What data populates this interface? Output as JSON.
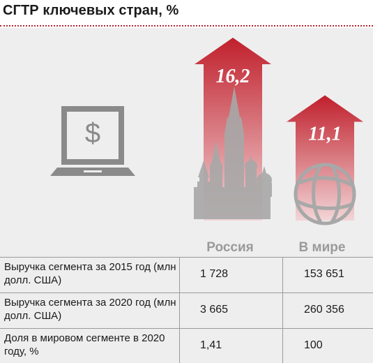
{
  "title": "СГТР ключевых стран, %",
  "colors": {
    "accent": "#b0262f",
    "arrow_top": "#c0202c",
    "arrow_bottom": "#f2d5d7",
    "icon": "#8a8a8a",
    "category_label": "#9a9a9a"
  },
  "icons": [
    "laptop-dollar-icon",
    "kremlin-icon",
    "globe-icon"
  ],
  "chart_data": {
    "type": "bar",
    "title": "СГТР ключевых стран, %",
    "categories": [
      "Россия",
      "В мире"
    ],
    "values": [
      16.2,
      11.1
    ],
    "value_labels": [
      "16,2",
      "11,1"
    ],
    "xlabel": "",
    "ylabel": ""
  },
  "table": {
    "rows": [
      {
        "label": "Выручка сегмента за 2015 год (млн долл. США)",
        "russia": "1 728",
        "world": "153 651"
      },
      {
        "label": "Выручка сегмента за 2020 год (млн долл. США)",
        "russia": "3 665",
        "world": "260 356"
      },
      {
        "label": "Доля в мировом сегменте в 2020 году, %",
        "russia": "1,41",
        "world": "100"
      }
    ]
  }
}
